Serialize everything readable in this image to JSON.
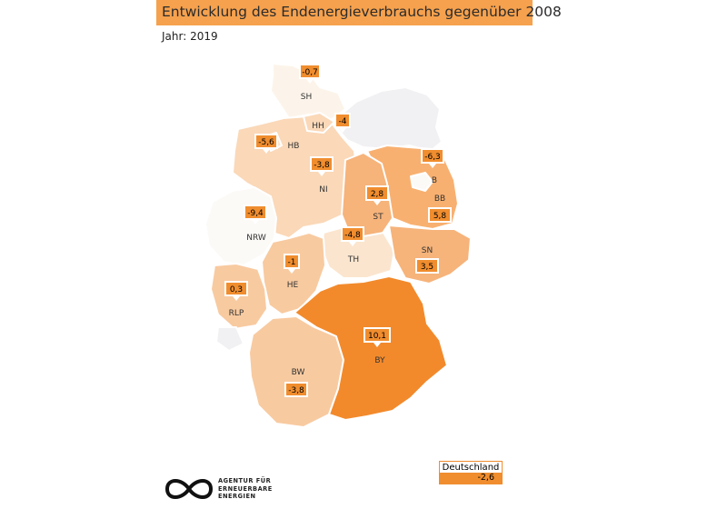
{
  "header": {
    "title": "Entwicklung des Endenergieverbrauchs gegenüber 2008",
    "subtitle": "Jahr: 2019"
  },
  "colors": {
    "title_bar": "#f6a14d",
    "value_box": "#f08d2e",
    "pos_strong": "#f28a2c",
    "pos_mid": "#f6b37a",
    "pos_light": "#f8caa0",
    "neg_light": "#fad8b8",
    "neg_pale": "#fdebd9",
    "neutral": "#fcfaf7",
    "no_data": "#f1f1f3"
  },
  "regions": [
    {
      "code": "SH",
      "value": "-0,7"
    },
    {
      "code": "HH",
      "value": "-4"
    },
    {
      "code": "HB",
      "value": "-5,6"
    },
    {
      "code": "NI",
      "value": "-3,8"
    },
    {
      "code": "B",
      "value": "-6,3"
    },
    {
      "code": "BB",
      "value": "5,8"
    },
    {
      "code": "ST",
      "value": "2,8"
    },
    {
      "code": "NRW",
      "value": "-9,4"
    },
    {
      "code": "TH",
      "value": "-4,8"
    },
    {
      "code": "SN",
      "value": "3,5"
    },
    {
      "code": "HE",
      "value": "-1"
    },
    {
      "code": "RLP",
      "value": "0,3"
    },
    {
      "code": "BY",
      "value": "10,1"
    },
    {
      "code": "BW",
      "value": "-3,8"
    }
  ],
  "national": {
    "name": "Deutschland",
    "value": "-2,6"
  },
  "logo": {
    "line1": "AGENTUR FÜR",
    "line2": "ERNEUERBARE",
    "line3": "ENERGIEN",
    "icon": "infinity-icon"
  }
}
